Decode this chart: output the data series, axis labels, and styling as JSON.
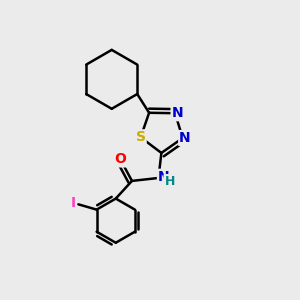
{
  "background_color": "#ebebeb",
  "atom_colors": {
    "C": "#000000",
    "N": "#0000cc",
    "S": "#ccaa00",
    "O": "#ff0000",
    "I": "#ff44bb",
    "H": "#008888"
  },
  "bond_color": "#000000",
  "line_width": 1.8,
  "fig_size": [
    3.0,
    3.0
  ],
  "dpi": 100
}
